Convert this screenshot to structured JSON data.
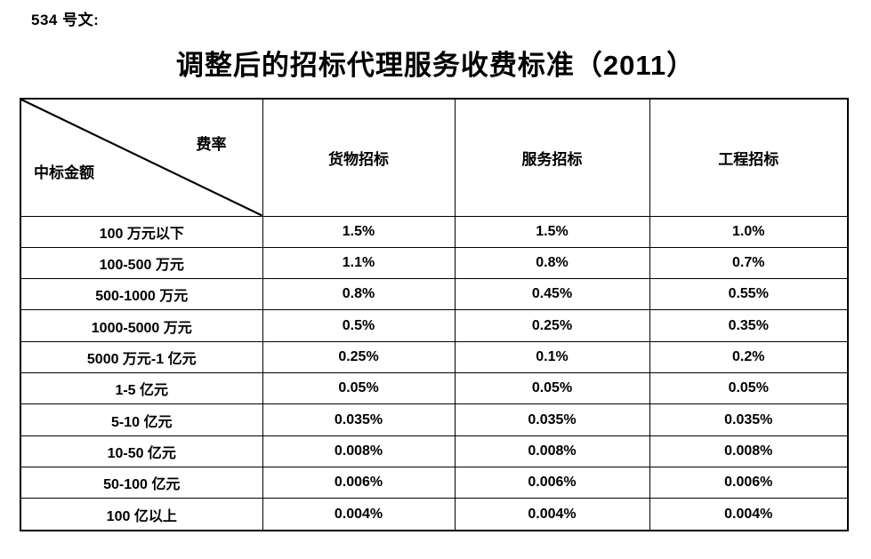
{
  "page": {
    "doc_label": "534 号文:",
    "title": "调整后的招标代理服务收费标准（2011）"
  },
  "table": {
    "corner_top_right": "费率",
    "corner_bottom_left": "中标金额",
    "columns": [
      "货物招标",
      "服务招标",
      "工程招标"
    ],
    "rows": [
      {
        "label": "100 万元以下",
        "values": [
          "1.5%",
          "1.5%",
          "1.0%"
        ]
      },
      {
        "label": "100-500 万元",
        "values": [
          "1.1%",
          "0.8%",
          "0.7%"
        ]
      },
      {
        "label": "500-1000 万元",
        "values": [
          "0.8%",
          "0.45%",
          "0.55%"
        ]
      },
      {
        "label": "1000-5000 万元",
        "values": [
          "0.5%",
          "0.25%",
          "0.35%"
        ]
      },
      {
        "label": "5000 万元-1 亿元",
        "values": [
          "0.25%",
          "0.1%",
          "0.2%"
        ]
      },
      {
        "label": "1-5 亿元",
        "values": [
          "0.05%",
          "0.05%",
          "0.05%"
        ]
      },
      {
        "label": "5-10 亿元",
        "values": [
          "0.035%",
          "0.035%",
          "0.035%"
        ]
      },
      {
        "label": "10-50 亿元",
        "values": [
          "0.008%",
          "0.008%",
          "0.008%"
        ]
      },
      {
        "label": "50-100 亿元",
        "values": [
          "0.006%",
          "0.006%",
          "0.006%"
        ]
      },
      {
        "label": "100 亿以上",
        "values": [
          "0.004%",
          "0.004%",
          "0.004%"
        ]
      }
    ]
  }
}
